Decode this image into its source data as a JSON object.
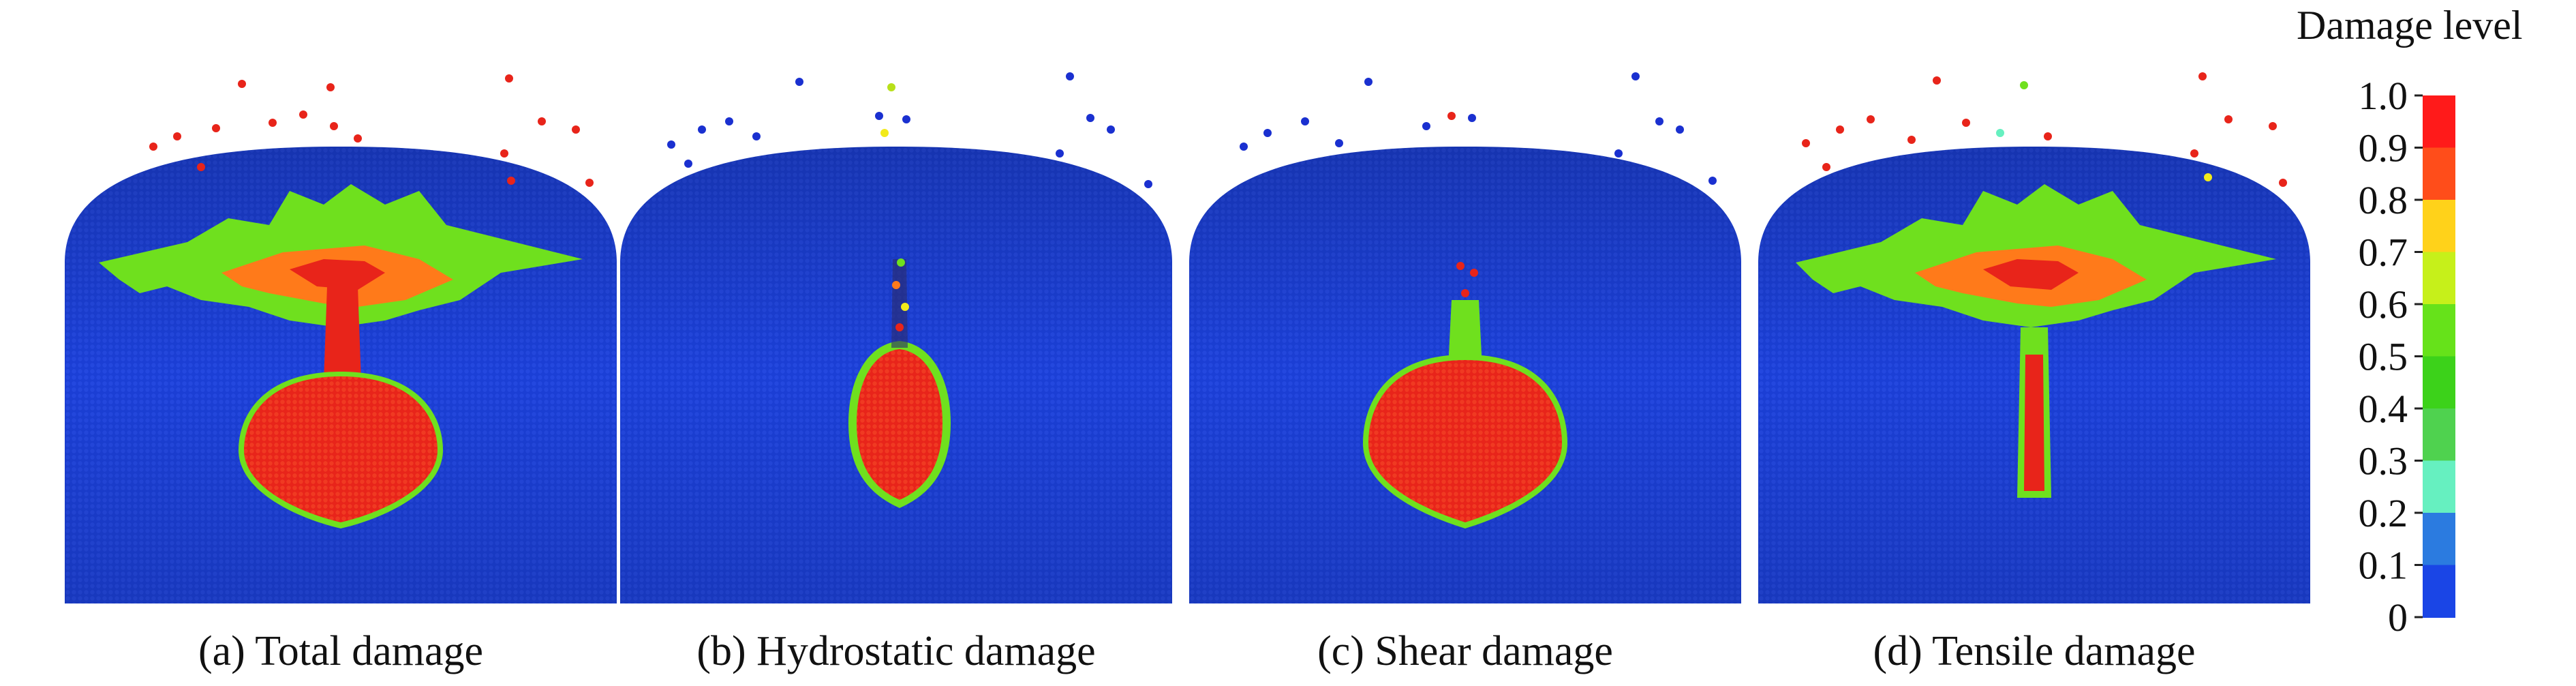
{
  "panels": [
    {
      "caption": "(a) Total damage",
      "variant": "total"
    },
    {
      "caption": "(b) Hydrostatic damage",
      "variant": "hydro"
    },
    {
      "caption": "(c) Shear damage",
      "variant": "shear"
    },
    {
      "caption": "(d) Tensile damage",
      "variant": "tensile"
    }
  ],
  "legend": {
    "title": "Damage level",
    "ticks": [
      "1.0",
      "0.9",
      "0.8",
      "0.7",
      "0.6",
      "0.5",
      "0.4",
      "0.3",
      "0.2",
      "0.1",
      "0"
    ],
    "colors": [
      "#ff1a1a",
      "#ff4d1a",
      "#ffd21a",
      "#c6f01a",
      "#66e21a",
      "#3cd21a",
      "#4fd24f",
      "#66f0c0",
      "#2b7be0",
      "#1a45e6"
    ]
  },
  "colors": {
    "block_blue": "#1b3fd6",
    "red": "#e8241a",
    "orange": "#ff7a1a",
    "green": "#6fe01e",
    "yellow": "#f2ea1a"
  }
}
